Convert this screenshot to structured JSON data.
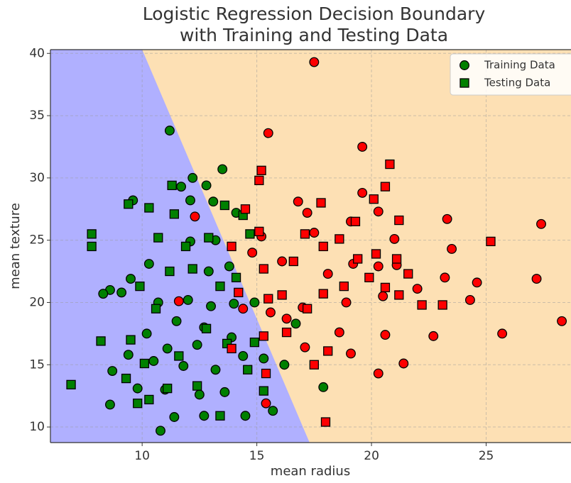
{
  "chart_data": {
    "type": "scatter",
    "title": [
      "Logistic Regression Decision Boundary",
      "with Training and Testing Data"
    ],
    "xlabel": "mean radius",
    "ylabel": "mean texture",
    "xlim": [
      6,
      28.7
    ],
    "ylim": [
      8.75,
      40.3
    ],
    "xticks": [
      10,
      15,
      20,
      25
    ],
    "yticks": [
      10,
      15,
      20,
      25,
      30,
      35,
      40
    ],
    "grid": true,
    "legend": "upper right",
    "class_colors": [
      "#008000",
      "#ff0000"
    ],
    "region_colors": [
      "#b0b0ff",
      "#fde0b4"
    ],
    "boundary": {
      "x": [
        10,
        17.3
      ],
      "y": [
        40.3,
        8.75
      ]
    },
    "series": [
      {
        "name": "Training Data",
        "marker": "circle",
        "color": "#008000",
        "x": [
          11.2,
          13.5,
          12.2,
          12.8,
          11.7,
          12.1,
          9.6,
          13.1,
          14.1,
          12.1,
          10.3,
          13.2,
          9.5,
          9.1,
          8.6,
          8.3,
          10.7,
          12,
          13,
          14,
          11.5,
          12.7,
          10.2,
          13.9,
          11.1,
          12.4,
          9.4,
          10.5,
          11.8,
          13.2,
          14.4,
          8.7,
          9.8,
          11,
          12.5,
          13.6,
          8.6,
          11.4,
          10.8,
          12.7,
          14.5,
          15.7,
          16.2,
          17.9,
          16.7,
          15.3,
          14.9,
          13.8,
          12.9,
          17.5,
          15.5,
          19.6,
          20.3,
          19.6,
          16.8,
          17.2,
          23.3,
          27.4,
          23.5,
          21,
          19.1,
          17.5,
          15.2,
          14.8,
          16.1,
          18.1,
          19.2,
          20.3,
          21.1,
          23.2,
          27.2,
          24.6,
          22,
          20.5,
          18.9,
          17,
          15.6,
          14.4,
          16.3,
          18.6,
          20.6,
          24.3,
          28.3,
          25.7,
          22.7,
          19.1,
          17.1,
          20.3,
          21.4,
          15.4,
          12.3,
          11.6
        ],
        "values": [
          33.8,
          30.7,
          30,
          29.4,
          29.3,
          28.2,
          28.2,
          28.1,
          27.2,
          24.9,
          23.1,
          25,
          21.9,
          20.8,
          21,
          20.7,
          20,
          20.2,
          19.7,
          19.9,
          18.5,
          18,
          17.5,
          17.2,
          16.3,
          16.6,
          15.8,
          15.3,
          14.9,
          14.6,
          15.7,
          14.5,
          13.1,
          13,
          12.6,
          12.8,
          11.8,
          10.8,
          9.7,
          10.9,
          10.9,
          11.3,
          15,
          13.2,
          18.3,
          15.5,
          20,
          22.9,
          22.5,
          39.3,
          33.6,
          32.5,
          27.3,
          28.8,
          28.1,
          27.2,
          26.7,
          26.3,
          24.3,
          25.1,
          26.5,
          25.6,
          25.3,
          24,
          23.3,
          22.3,
          23.1,
          22.9,
          23,
          22,
          21.9,
          21.6,
          21.1,
          20.5,
          20,
          19.6,
          19.2,
          19.5,
          18.7,
          17.6,
          17.4,
          20.2,
          18.5,
          17.5,
          17.3,
          15.9,
          16.4,
          14.3,
          15.1,
          11.9,
          26.9,
          20.1
        ],
        "classes": [
          0,
          0,
          0,
          0,
          0,
          0,
          0,
          0,
          0,
          0,
          0,
          0,
          0,
          0,
          0,
          0,
          0,
          0,
          0,
          0,
          0,
          0,
          0,
          0,
          0,
          0,
          0,
          0,
          0,
          0,
          0,
          0,
          0,
          0,
          0,
          0,
          0,
          0,
          0,
          0,
          0,
          0,
          0,
          0,
          0,
          0,
          0,
          0,
          0,
          1,
          1,
          1,
          1,
          1,
          1,
          1,
          1,
          1,
          1,
          1,
          1,
          1,
          1,
          1,
          1,
          1,
          1,
          1,
          1,
          1,
          1,
          1,
          1,
          1,
          1,
          1,
          1,
          1,
          1,
          1,
          1,
          1,
          1,
          1,
          1,
          1,
          1,
          1,
          1,
          1,
          1,
          1
        ]
      },
      {
        "name": "Testing Data",
        "marker": "square",
        "color": "#008000",
        "x": [
          7.8,
          7.8,
          6.9,
          9.4,
          10.3,
          11.3,
          11.4,
          13.6,
          14.4,
          10.7,
          11.9,
          12.9,
          8.2,
          9.9,
          10.6,
          11.2,
          12.2,
          13.4,
          14.7,
          14.1,
          9.3,
          9.8,
          10.3,
          11.1,
          12.4,
          13.4,
          15.3,
          14.6,
          13.7,
          12.8,
          11.6,
          10.1,
          9.5,
          14.9,
          20.8,
          15.2,
          15.1,
          20.6,
          20.1,
          17.8,
          19.3,
          21.2,
          18.6,
          17.1,
          15.1,
          14.5,
          25.2,
          17.9,
          20.2,
          21.1,
          19.4,
          16.6,
          13.9,
          18.8,
          21.2,
          22.2,
          23.1,
          20.6,
          19.9,
          17.9,
          16.1,
          15.3,
          14.2,
          15.5,
          17.2,
          21.6,
          17.5,
          18.1,
          15.4,
          18,
          16.3,
          15.3,
          13.9
        ],
        "values": [
          25.5,
          24.5,
          13.4,
          27.9,
          27.6,
          29.4,
          27.1,
          27.8,
          27,
          25.2,
          24.5,
          25.2,
          16.9,
          21.3,
          19.5,
          22.5,
          22.7,
          21.3,
          25.5,
          22,
          13.9,
          11.9,
          12.2,
          13.1,
          13.3,
          10.9,
          12.9,
          14.6,
          16.7,
          17.9,
          15.7,
          15.1,
          17,
          16.8,
          31.1,
          30.6,
          29.8,
          29.3,
          28.3,
          28,
          26.5,
          26.6,
          25.1,
          25.5,
          25.7,
          27.5,
          24.9,
          24.5,
          23.9,
          23.5,
          23.5,
          23.3,
          24.5,
          21.3,
          20.6,
          19.8,
          19.8,
          21.2,
          22,
          20.7,
          20.6,
          22.7,
          20.8,
          20.3,
          19.5,
          22.3,
          15,
          16.1,
          14.3,
          10.4,
          17.6,
          17.3,
          16.3
        ],
        "classes": [
          0,
          0,
          0,
          0,
          0,
          0,
          0,
          0,
          0,
          0,
          0,
          0,
          0,
          0,
          0,
          0,
          0,
          0,
          0,
          0,
          0,
          0,
          0,
          0,
          0,
          0,
          0,
          0,
          0,
          0,
          0,
          0,
          0,
          0,
          1,
          1,
          1,
          1,
          1,
          1,
          1,
          1,
          1,
          1,
          1,
          1,
          1,
          1,
          1,
          1,
          1,
          1,
          1,
          1,
          1,
          1,
          1,
          1,
          1,
          1,
          1,
          1,
          1,
          1,
          1,
          1,
          1,
          1,
          1,
          1,
          1,
          1,
          1
        ]
      }
    ]
  }
}
